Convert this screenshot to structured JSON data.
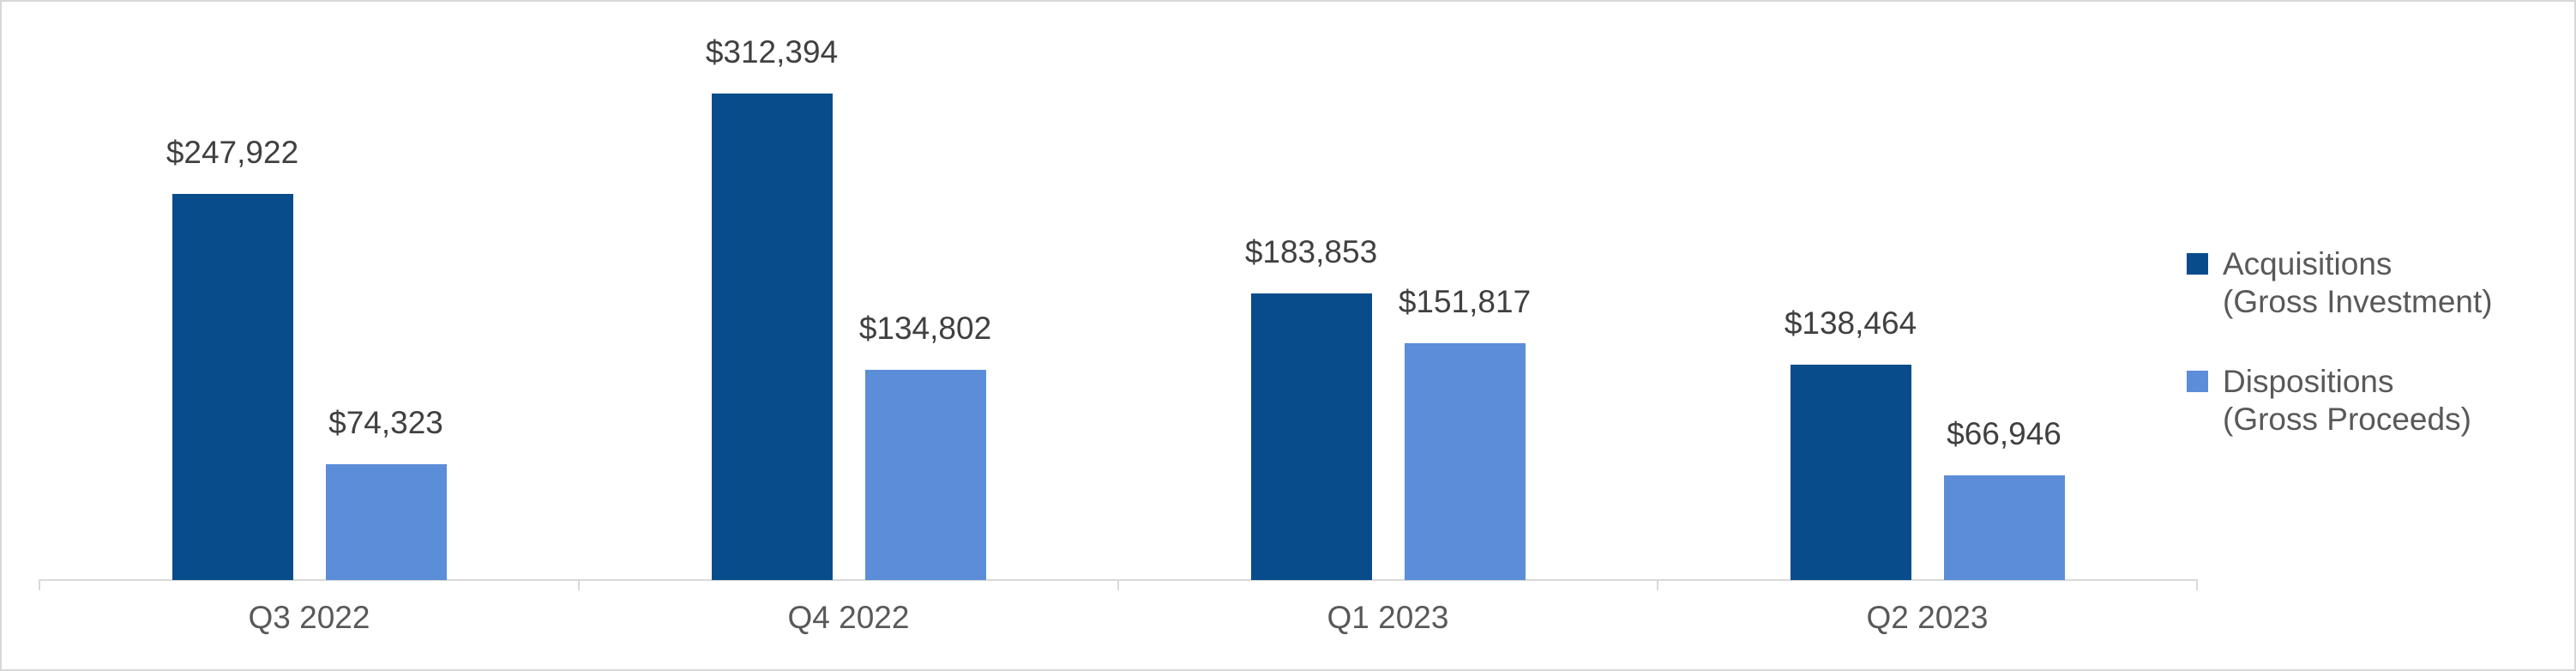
{
  "chart_data": {
    "type": "bar",
    "title": "",
    "xlabel": "",
    "ylabel": "",
    "categories": [
      "Q3 2022",
      "Q4 2022",
      "Q1 2023",
      "Q2 2023"
    ],
    "series": [
      {
        "name": "Acquisitions (Gross Investment)",
        "color": "#094C8B",
        "values": [
          247922,
          312394,
          183853,
          138464
        ],
        "data_labels": [
          "$247,922",
          "$312,394",
          "$183,853",
          "$138,464"
        ]
      },
      {
        "name": "Dispositions (Gross Proceeds)",
        "color": "#5B8DD9",
        "values": [
          74323,
          134802,
          151817,
          66946
        ],
        "data_labels": [
          "$74,323",
          "$134,802",
          "$151,817",
          "$66,946"
        ]
      }
    ],
    "ylim_estimate": [
      0,
      350000
    ],
    "y_axis_visible": false,
    "gridlines": false,
    "legend_position": "right",
    "data_labels_position": "outside-end"
  },
  "legend": {
    "items": [
      {
        "line1": "Acquisitions",
        "line2": "(Gross Investment)",
        "color": "#094C8B"
      },
      {
        "line1": "Dispositions",
        "line2": "(Gross Proceeds)",
        "color": "#5B8DD9"
      }
    ]
  },
  "colors": {
    "series_acquisitions": "#094C8B",
    "series_dispositions": "#5B8DD9",
    "axis_line": "#d9d9d9",
    "frame_border": "#d7d7d7",
    "value_label_text": "#404040",
    "axis_label_text": "#595959",
    "background": "#ffffff"
  }
}
